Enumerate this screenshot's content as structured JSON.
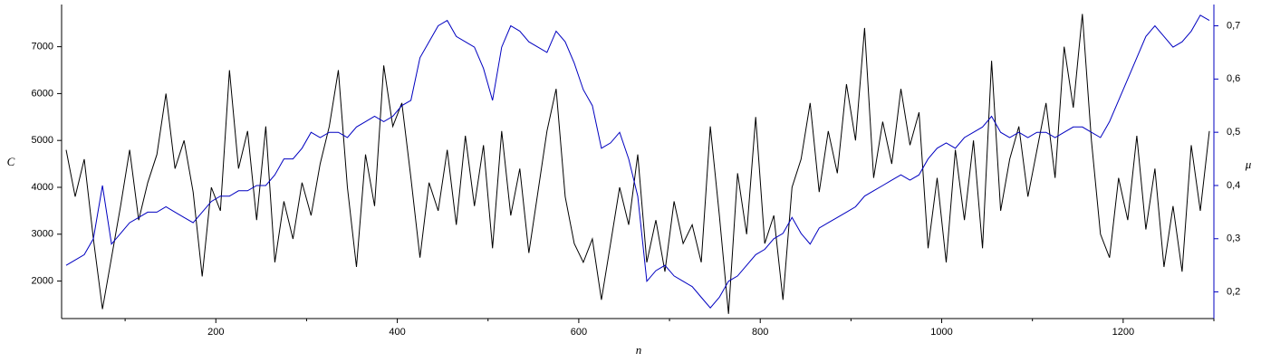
{
  "chart_data": {
    "type": "line",
    "x_label": "n",
    "y_label": "C",
    "y2_label": "μ",
    "x": [
      35,
      45,
      55,
      65,
      75,
      85,
      95,
      105,
      115,
      125,
      135,
      145,
      155,
      165,
      175,
      185,
      195,
      205,
      215,
      225,
      235,
      245,
      255,
      265,
      275,
      285,
      295,
      305,
      315,
      325,
      335,
      345,
      355,
      365,
      375,
      385,
      395,
      405,
      415,
      425,
      435,
      445,
      455,
      465,
      475,
      485,
      495,
      505,
      515,
      525,
      535,
      545,
      555,
      565,
      575,
      585,
      595,
      605,
      615,
      625,
      635,
      645,
      655,
      665,
      675,
      685,
      695,
      705,
      715,
      725,
      735,
      745,
      755,
      765,
      775,
      785,
      795,
      805,
      815,
      825,
      835,
      845,
      855,
      865,
      875,
      885,
      895,
      905,
      915,
      925,
      935,
      945,
      955,
      965,
      975,
      985,
      995,
      1005,
      1015,
      1025,
      1035,
      1045,
      1055,
      1065,
      1075,
      1085,
      1095,
      1105,
      1115,
      1125,
      1135,
      1145,
      1155,
      1165,
      1175,
      1185,
      1195,
      1205,
      1215,
      1225,
      1235,
      1245,
      1255,
      1265,
      1275,
      1285,
      1295
    ],
    "series": [
      {
        "color": "#000000",
        "axis": "y",
        "values": [
          4800,
          3800,
          4600,
          2900,
          1400,
          2500,
          3600,
          4800,
          3300,
          4100,
          4700,
          6000,
          4400,
          5000,
          3900,
          2100,
          4000,
          3500,
          6500,
          4400,
          5200,
          3300,
          5300,
          2400,
          3700,
          2900,
          4100,
          3400,
          4500,
          5300,
          6500,
          4000,
          2300,
          4700,
          3600,
          6600,
          5300,
          5800,
          4200,
          2500,
          4100,
          3500,
          4800,
          3200,
          5100,
          3600,
          4900,
          2700,
          5200,
          3400,
          4400,
          2600,
          3900,
          5200,
          6100,
          3800,
          2800,
          2400,
          2900,
          1600,
          2800,
          4000,
          3200,
          4700,
          2400,
          3300,
          2200,
          3700,
          2800,
          3200,
          2400,
          5300,
          3400,
          1300,
          4300,
          3000,
          5500,
          2800,
          3400,
          1600,
          4000,
          4600,
          5800,
          3900,
          5200,
          4300,
          6200,
          5000,
          7400,
          4200,
          5400,
          4500,
          6100,
          4900,
          5600,
          2700,
          4200,
          2400,
          4800,
          3300,
          5000,
          2700,
          6700,
          3500,
          4600,
          5300,
          3800,
          4800,
          5800,
          4200,
          7000,
          5700,
          7700,
          5000,
          3000,
          2500,
          4200,
          3300,
          5100,
          3100,
          4400,
          2300,
          3600,
          2200,
          4900,
          3500,
          5200
        ]
      },
      {
        "color": "#0000c0",
        "axis": "y2",
        "values": [
          0.25,
          0.26,
          0.27,
          0.3,
          0.4,
          0.29,
          0.31,
          0.33,
          0.34,
          0.35,
          0.35,
          0.36,
          0.35,
          0.34,
          0.33,
          0.35,
          0.37,
          0.38,
          0.38,
          0.39,
          0.39,
          0.4,
          0.4,
          0.42,
          0.45,
          0.45,
          0.47,
          0.5,
          0.49,
          0.5,
          0.5,
          0.49,
          0.51,
          0.52,
          0.53,
          0.52,
          0.53,
          0.55,
          0.56,
          0.64,
          0.67,
          0.7,
          0.71,
          0.68,
          0.67,
          0.66,
          0.62,
          0.56,
          0.66,
          0.7,
          0.69,
          0.67,
          0.66,
          0.65,
          0.69,
          0.67,
          0.63,
          0.58,
          0.55,
          0.47,
          0.48,
          0.5,
          0.45,
          0.38,
          0.22,
          0.24,
          0.25,
          0.23,
          0.22,
          0.21,
          0.19,
          0.17,
          0.19,
          0.22,
          0.23,
          0.25,
          0.27,
          0.28,
          0.3,
          0.31,
          0.34,
          0.31,
          0.29,
          0.32,
          0.33,
          0.34,
          0.35,
          0.36,
          0.38,
          0.39,
          0.4,
          0.41,
          0.42,
          0.41,
          0.42,
          0.45,
          0.47,
          0.48,
          0.47,
          0.49,
          0.5,
          0.51,
          0.53,
          0.5,
          0.49,
          0.5,
          0.49,
          0.5,
          0.5,
          0.49,
          0.5,
          0.51,
          0.51,
          0.5,
          0.49,
          0.52,
          0.56,
          0.6,
          0.64,
          0.68,
          0.7,
          0.68,
          0.66,
          0.67,
          0.69,
          0.72,
          0.71
        ]
      }
    ],
    "xlim": [
      30,
      1300
    ],
    "xticks": [
      200,
      400,
      600,
      800,
      1000,
      1200
    ],
    "xminorticks": [
      100,
      300,
      500,
      700,
      900,
      1100,
      1300
    ],
    "ylim": [
      1200,
      7900
    ],
    "yticks": [
      2000,
      3000,
      4000,
      5000,
      6000,
      7000
    ],
    "y2lim": [
      0.15,
      0.74
    ],
    "y2ticks": [
      {
        "value": 0.2,
        "label": "0,2"
      },
      {
        "value": 0.3,
        "label": "0,3"
      },
      {
        "value": 0.4,
        "label": "0,4"
      },
      {
        "value": 0.5,
        "label": "0,5"
      },
      {
        "value": 0.6,
        "label": "0,6"
      },
      {
        "value": 0.7,
        "label": "0,7"
      }
    ]
  }
}
